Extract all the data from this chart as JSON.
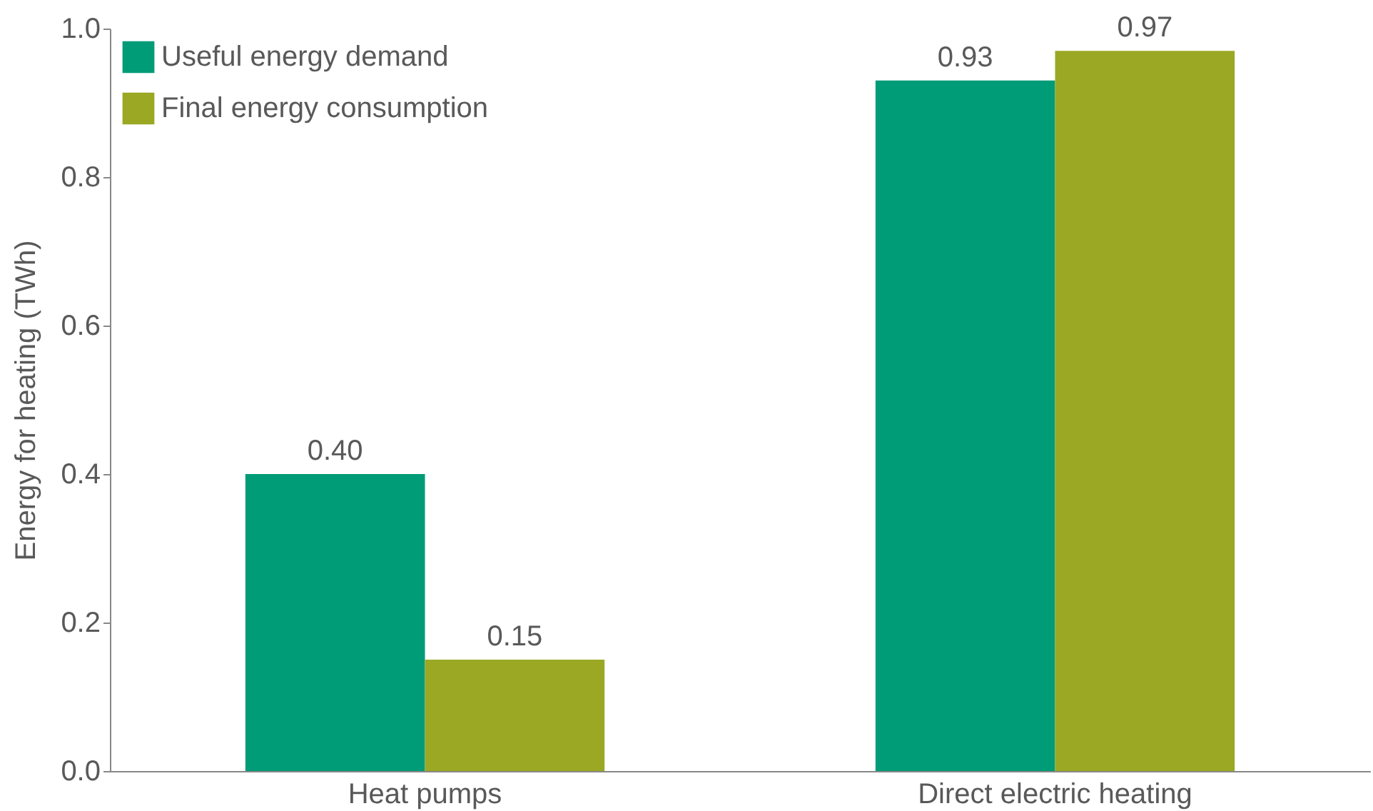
{
  "chart_data": {
    "type": "bar",
    "ylabel": "Energy for heating (TWh)",
    "categories": [
      "Heat pumps",
      "Direct electric heating"
    ],
    "series": [
      {
        "name": "Useful energy demand",
        "color": "#009b77",
        "values": [
          0.4,
          0.93
        ],
        "value_labels": [
          "0.40",
          "0.93"
        ]
      },
      {
        "name": "Final energy consumption",
        "color": "#9aa823",
        "values": [
          0.15,
          0.97
        ],
        "value_labels": [
          "0.15",
          "0.97"
        ]
      }
    ],
    "ylim": [
      0,
      1
    ],
    "yticks": [
      {
        "value": 0,
        "label": "0.0"
      },
      {
        "value": 0.2,
        "label": "0.2"
      },
      {
        "value": 0.4,
        "label": "0.4"
      },
      {
        "value": 0.6,
        "label": "0.6"
      },
      {
        "value": 0.8,
        "label": "0.8"
      },
      {
        "value": 1,
        "label": "1.0"
      }
    ],
    "grid": false,
    "legend": "top left"
  }
}
